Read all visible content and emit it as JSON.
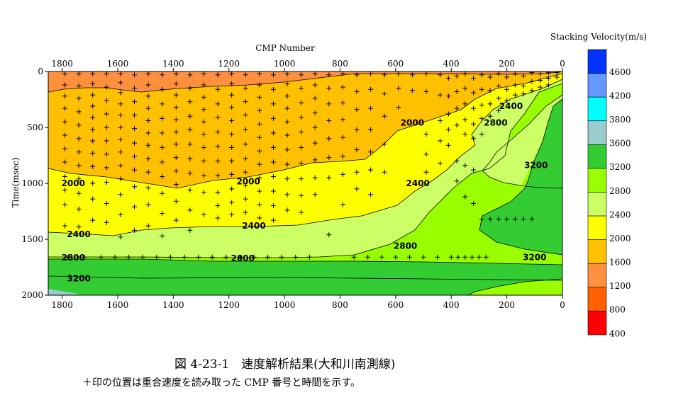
{
  "caption": "図 4-23-1　速度解析結果(大和川南測線)",
  "subcaption": "＋印の位置は重合速度を読み取った CMP 番号と時間を示す。",
  "chart_data": {
    "type": "heatmap",
    "xlabel": "CMP Number",
    "ylabel": "Time(msec)",
    "colorbar_title": "Stacking Velocity(m/s)",
    "xlim": [
      1850,
      0
    ],
    "ylim": [
      0,
      2000
    ],
    "x_ticks": [
      1800,
      1600,
      1400,
      1200,
      1000,
      800,
      600,
      400,
      200,
      0
    ],
    "y_ticks": [
      0,
      500,
      1000,
      1500,
      2000
    ],
    "color_levels": [
      {
        "value": 400,
        "color": "#ff0000"
      },
      {
        "value": 800,
        "color": "#ff6000"
      },
      {
        "value": 1200,
        "color": "#ff9040"
      },
      {
        "value": 1600,
        "color": "#ffc000"
      },
      {
        "value": 2000,
        "color": "#ffff00"
      },
      {
        "value": 2400,
        "color": "#ccff66"
      },
      {
        "value": 2800,
        "color": "#99ff00"
      },
      {
        "value": 3200,
        "color": "#33cc33"
      },
      {
        "value": 3600,
        "color": "#99cccc"
      },
      {
        "value": 3800,
        "color": "#00ffff"
      },
      {
        "value": 4200,
        "color": "#6699ff"
      },
      {
        "value": 4600,
        "color": "#0033ff"
      }
    ],
    "colorbar_ticks": [
      "4600",
      "4200",
      "3800",
      "3600",
      "3200",
      "2800",
      "2400",
      "2000",
      "1600",
      "1200",
      "800",
      "400"
    ],
    "contour_labels": [
      {
        "text": "2000",
        "cmp": 1760,
        "time": 1000
      },
      {
        "text": "2000",
        "cmp": 1130,
        "time": 985
      },
      {
        "text": "2000",
        "cmp": 540,
        "time": 460
      },
      {
        "text": "2400",
        "cmp": 1740,
        "time": 1455
      },
      {
        "text": "2400",
        "cmp": 1110,
        "time": 1380
      },
      {
        "text": "2400",
        "cmp": 520,
        "time": 1000
      },
      {
        "text": "2400",
        "cmp": 185,
        "time": 310
      },
      {
        "text": "2800",
        "cmp": 1760,
        "time": 1665
      },
      {
        "text": "2800",
        "cmp": 1150,
        "time": 1670
      },
      {
        "text": "2800",
        "cmp": 565,
        "time": 1560
      },
      {
        "text": "2800",
        "cmp": 240,
        "time": 460
      },
      {
        "text": "3200",
        "cmp": 1740,
        "time": 1850
      },
      {
        "text": "3200",
        "cmp": 95,
        "time": 840
      },
      {
        "text": "3200",
        "cmp": 100,
        "time": 1660
      }
    ],
    "pick_rows": [
      {
        "time": 1660,
        "cmps": [
          1780,
          1720,
          1660,
          1610,
          1560,
          1510,
          1460,
          1410,
          1360,
          1310,
          1260,
          1210,
          1160,
          1110,
          1060,
          1010,
          960,
          910,
          750,
          700,
          650,
          600,
          550,
          500,
          450,
          400,
          375,
          350,
          325,
          300,
          275
        ]
      },
      {
        "time": 1320,
        "cmps": [
          290,
          260,
          230,
          200,
          170,
          140,
          110
        ]
      }
    ],
    "pick_columns": [
      {
        "cmp": 1790,
        "times": [
          20,
          120,
          220,
          330,
          450,
          570,
          690,
          810,
          940,
          1060,
          1190,
          1380
        ]
      },
      {
        "cmp": 1740,
        "times": [
          20,
          130,
          240,
          360,
          480,
          600,
          720,
          840,
          960,
          1090,
          1230,
          1390
        ]
      },
      {
        "cmp": 1690,
        "times": [
          20,
          110,
          210,
          310,
          410,
          520,
          620,
          730,
          850,
          1000,
          1140,
          1330
        ]
      },
      {
        "cmp": 1640,
        "times": [
          20,
          140,
          260,
          380,
          500,
          620,
          740,
          860,
          990,
          1180,
          1350
        ]
      },
      {
        "cmp": 1590,
        "times": [
          20,
          100,
          190,
          290,
          390,
          500,
          610,
          720,
          840,
          960,
          1100,
          1280,
          1480
        ]
      },
      {
        "cmp": 1540,
        "times": [
          30,
          150,
          270,
          390,
          510,
          640,
          760,
          880,
          1030,
          1210,
          1420
        ]
      },
      {
        "cmp": 1490,
        "times": [
          20,
          120,
          220,
          330,
          440,
          550,
          660,
          780,
          900,
          1040,
          1190,
          1380
        ]
      },
      {
        "cmp": 1440,
        "times": [
          30,
          160,
          290,
          420,
          550,
          680,
          810,
          940,
          1090,
          1270,
          1470
        ]
      },
      {
        "cmp": 1390,
        "times": [
          20,
          110,
          210,
          320,
          430,
          540,
          650,
          770,
          890,
          1010,
          1160,
          1330
        ]
      },
      {
        "cmp": 1340,
        "times": [
          30,
          150,
          270,
          400,
          520,
          650,
          780,
          910,
          1060,
          1240,
          1420
        ]
      },
      {
        "cmp": 1290,
        "times": [
          20,
          120,
          230,
          340,
          450,
          560,
          680,
          800,
          930,
          1080,
          1280
        ]
      },
      {
        "cmp": 1240,
        "times": [
          30,
          160,
          290,
          410,
          540,
          670,
          800,
          930,
          1080,
          1200,
          1310
        ]
      },
      {
        "cmp": 1190,
        "times": [
          20,
          110,
          210,
          320,
          440,
          560,
          680,
          800,
          920,
          1050,
          1170,
          1280
        ]
      },
      {
        "cmp": 1140,
        "times": [
          30,
          150,
          270,
          390,
          520,
          650,
          780,
          900,
          1020,
          1140,
          1260
        ]
      },
      {
        "cmp": 1090,
        "times": [
          20,
          120,
          230,
          350,
          470,
          590,
          710,
          830,
          950,
          1070,
          1190,
          1310
        ]
      },
      {
        "cmp": 1040,
        "times": [
          30,
          160,
          290,
          420,
          550,
          680,
          810,
          940,
          1070,
          1200,
          1330
        ]
      },
      {
        "cmp": 990,
        "times": [
          20,
          110,
          220,
          330,
          450,
          570,
          700,
          830,
          960,
          1100,
          1240
        ]
      },
      {
        "cmp": 940,
        "times": [
          30,
          150,
          280,
          410,
          540,
          680,
          820,
          960,
          1110,
          1260
        ]
      },
      {
        "cmp": 890,
        "times": [
          20,
          120,
          240,
          370,
          500,
          640,
          790,
          950,
          1100
        ]
      },
      {
        "cmp": 840,
        "times": [
          30,
          150,
          290,
          440,
          600,
          770,
          950,
          1460
        ]
      },
      {
        "cmp": 790,
        "times": [
          20,
          140,
          280,
          430,
          590,
          760,
          920,
          1190
        ]
      },
      {
        "cmp": 740,
        "times": [
          30,
          180,
          340,
          520,
          700,
          900,
          1050
        ]
      },
      {
        "cmp": 690,
        "times": [
          20,
          160,
          330,
          520,
          720,
          880,
          1100
        ]
      },
      {
        "cmp": 640,
        "times": [
          30,
          200,
          400,
          650,
          900
        ]
      },
      {
        "cmp": 590,
        "times": [
          20,
          150,
          320
        ]
      },
      {
        "cmp": 540,
        "times": [
          30,
          170
        ]
      },
      {
        "cmp": 490,
        "times": [
          20,
          180,
          560,
          740,
          900
        ]
      },
      {
        "cmp": 440,
        "times": [
          30,
          210,
          440,
          620,
          820
        ]
      },
      {
        "cmp": 410,
        "times": [
          60,
          220,
          380,
          520,
          660
        ]
      },
      {
        "cmp": 380,
        "times": [
          40,
          180,
          330,
          480,
          800,
          980
        ]
      },
      {
        "cmp": 350,
        "times": [
          20,
          150,
          290,
          430,
          560,
          840,
          1120
        ]
      },
      {
        "cmp": 320,
        "times": [
          60,
          190,
          330,
          470,
          600,
          880,
          1180
        ]
      },
      {
        "cmp": 290,
        "times": [
          30,
          160,
          300,
          420,
          560
        ]
      },
      {
        "cmp": 260,
        "times": [
          50,
          170,
          290,
          400
        ]
      },
      {
        "cmp": 230,
        "times": [
          20,
          130,
          240,
          350
        ]
      },
      {
        "cmp": 200,
        "times": [
          50,
          160,
          260
        ]
      },
      {
        "cmp": 170,
        "times": [
          20,
          120,
          210
        ]
      },
      {
        "cmp": 140,
        "times": [
          40,
          130,
          200
        ]
      },
      {
        "cmp": 110,
        "times": [
          10,
          90,
          170
        ]
      },
      {
        "cmp": 80,
        "times": [
          20,
          80,
          140
        ]
      },
      {
        "cmp": 50,
        "times": [
          10,
          60,
          120
        ]
      },
      {
        "cmp": 20,
        "times": [
          10,
          50
        ]
      }
    ]
  }
}
